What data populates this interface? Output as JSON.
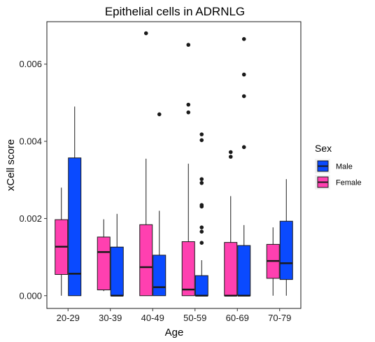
{
  "chart_data": {
    "type": "box",
    "title": "Epithelial cells in ADRNLG",
    "xlabel": "Age",
    "ylabel": "xCell score",
    "categories": [
      "20-29",
      "30-39",
      "40-49",
      "50-59",
      "60-69",
      "70-79"
    ],
    "ylim": [
      -0.00033,
      0.0071
    ],
    "yticks": [
      {
        "value": 0.0,
        "label": "0.000"
      },
      {
        "value": 0.002,
        "label": "0.002"
      },
      {
        "value": 0.004,
        "label": "0.004"
      },
      {
        "value": 0.006,
        "label": "0.006"
      }
    ],
    "legend": {
      "title": "Sex",
      "placement": "right",
      "entries": [
        "Male",
        "Female"
      ]
    },
    "series": [
      {
        "name": "Female",
        "color": "#FF40B0",
        "boxes": [
          {
            "whisker_low": 0.0,
            "q1": 0.00055,
            "median": 0.00127,
            "q3": 0.00197,
            "whisker_high": 0.0028,
            "outliers": []
          },
          {
            "whisker_low": 0.00012,
            "q1": 0.00015,
            "median": 0.00113,
            "q3": 0.00152,
            "whisker_high": 0.00198,
            "outliers": []
          },
          {
            "whisker_low": 0.0,
            "q1": 0.0,
            "median": 0.00074,
            "q3": 0.00184,
            "whisker_high": 0.00355,
            "outliers": [
              0.0068
            ]
          },
          {
            "whisker_low": 0.0,
            "q1": 0.0,
            "median": 0.00016,
            "q3": 0.0014,
            "whisker_high": 0.00342,
            "outliers": [
              0.0065,
              0.00495,
              0.00475
            ]
          },
          {
            "whisker_low": 0.0,
            "q1": 0.0,
            "median": 0.0,
            "q3": 0.00138,
            "whisker_high": 0.00258,
            "outliers": [
              0.00372,
              0.0036
            ]
          },
          {
            "whisker_low": 0.0,
            "q1": 0.00045,
            "median": 0.0009,
            "q3": 0.00133,
            "whisker_high": 0.00177,
            "outliers": []
          }
        ]
      },
      {
        "name": "Male",
        "color": "#0A4AFF",
        "boxes": [
          {
            "whisker_low": 0.0,
            "q1": 0.0,
            "median": 0.00057,
            "q3": 0.00357,
            "whisker_high": 0.0049,
            "outliers": []
          },
          {
            "whisker_low": 0.0,
            "q1": 0.0,
            "median": 0.0,
            "q3": 0.00126,
            "whisker_high": 0.00212,
            "outliers": []
          },
          {
            "whisker_low": 0.0,
            "q1": 0.0,
            "median": 0.00022,
            "q3": 0.00105,
            "whisker_high": 0.0022,
            "outliers": [
              0.0047
            ]
          },
          {
            "whisker_low": 0.0,
            "q1": 0.0,
            "median": 0.0,
            "q3": 0.00052,
            "whisker_high": 0.00092,
            "outliers": [
              0.00418,
              0.00403,
              0.00302,
              0.00292,
              0.00235,
              0.00231,
              0.00177,
              0.00166,
              0.00137
            ]
          },
          {
            "whisker_low": 0.0,
            "q1": 0.0,
            "median": 0.0,
            "q3": 0.0013,
            "whisker_high": 0.00183,
            "outliers": [
              0.00665,
              0.00573,
              0.00517,
              0.00385
            ]
          },
          {
            "whisker_low": 0.0,
            "q1": 0.00042,
            "median": 0.00084,
            "q3": 0.00193,
            "whisker_high": 0.00302,
            "outliers": []
          }
        ]
      }
    ]
  }
}
